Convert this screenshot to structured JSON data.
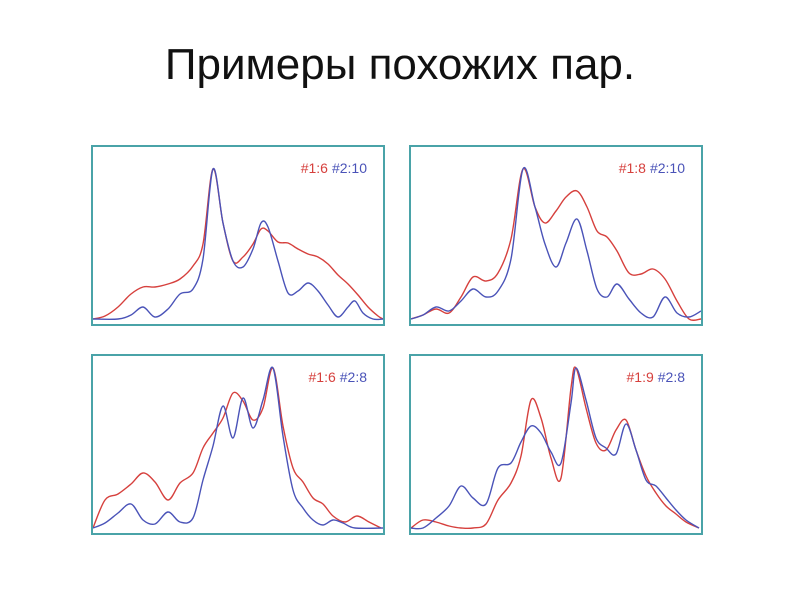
{
  "title": "Примеры похожих пар.",
  "colors": {
    "frame": "#4aa3a8",
    "red": "#d6403d",
    "blue": "#4a53b8"
  },
  "panels": [
    {
      "red_label": "#1:6",
      "blue_label": "#2:10",
      "red": [
        [
          0,
          0
        ],
        [
          12,
          3
        ],
        [
          25,
          12
        ],
        [
          38,
          25
        ],
        [
          50,
          32
        ],
        [
          62,
          32
        ],
        [
          75,
          35
        ],
        [
          87,
          40
        ],
        [
          100,
          53
        ],
        [
          110,
          75
        ],
        [
          120,
          150
        ],
        [
          130,
          96
        ],
        [
          140,
          58
        ],
        [
          150,
          62
        ],
        [
          160,
          75
        ],
        [
          168,
          90
        ],
        [
          175,
          88
        ],
        [
          185,
          77
        ],
        [
          195,
          76
        ],
        [
          205,
          70
        ],
        [
          215,
          65
        ],
        [
          225,
          62
        ],
        [
          235,
          55
        ],
        [
          245,
          44
        ],
        [
          255,
          35
        ],
        [
          265,
          24
        ],
        [
          275,
          12
        ],
        [
          285,
          3
        ],
        [
          290,
          0
        ]
      ],
      "blue": [
        [
          0,
          0
        ],
        [
          25,
          0
        ],
        [
          38,
          4
        ],
        [
          50,
          12
        ],
        [
          62,
          2
        ],
        [
          75,
          10
        ],
        [
          87,
          25
        ],
        [
          100,
          30
        ],
        [
          110,
          60
        ],
        [
          120,
          150
        ],
        [
          130,
          96
        ],
        [
          140,
          58
        ],
        [
          150,
          52
        ],
        [
          160,
          70
        ],
        [
          168,
          96
        ],
        [
          175,
          92
        ],
        [
          185,
          58
        ],
        [
          195,
          26
        ],
        [
          205,
          28
        ],
        [
          215,
          36
        ],
        [
          225,
          28
        ],
        [
          235,
          14
        ],
        [
          245,
          2
        ],
        [
          255,
          12
        ],
        [
          262,
          18
        ],
        [
          270,
          6
        ],
        [
          280,
          0
        ],
        [
          290,
          0
        ]
      ]
    },
    {
      "red_label": "#1:8",
      "blue_label": "#2:10",
      "red": [
        [
          0,
          0
        ],
        [
          12,
          4
        ],
        [
          25,
          10
        ],
        [
          38,
          6
        ],
        [
          50,
          22
        ],
        [
          62,
          42
        ],
        [
          75,
          38
        ],
        [
          87,
          46
        ],
        [
          100,
          80
        ],
        [
          112,
          150
        ],
        [
          124,
          112
        ],
        [
          134,
          96
        ],
        [
          145,
          108
        ],
        [
          155,
          122
        ],
        [
          166,
          128
        ],
        [
          176,
          112
        ],
        [
          186,
          88
        ],
        [
          196,
          82
        ],
        [
          206,
          68
        ],
        [
          218,
          46
        ],
        [
          230,
          45
        ],
        [
          242,
          50
        ],
        [
          254,
          40
        ],
        [
          266,
          18
        ],
        [
          278,
          0
        ],
        [
          290,
          0
        ]
      ],
      "blue": [
        [
          0,
          0
        ],
        [
          12,
          4
        ],
        [
          25,
          12
        ],
        [
          38,
          8
        ],
        [
          50,
          18
        ],
        [
          62,
          30
        ],
        [
          75,
          22
        ],
        [
          87,
          28
        ],
        [
          100,
          60
        ],
        [
          112,
          150
        ],
        [
          124,
          112
        ],
        [
          134,
          75
        ],
        [
          145,
          52
        ],
        [
          155,
          76
        ],
        [
          166,
          100
        ],
        [
          176,
          68
        ],
        [
          186,
          30
        ],
        [
          196,
          22
        ],
        [
          206,
          35
        ],
        [
          218,
          20
        ],
        [
          230,
          6
        ],
        [
          242,
          2
        ],
        [
          254,
          22
        ],
        [
          266,
          6
        ],
        [
          278,
          2
        ],
        [
          290,
          8
        ]
      ]
    },
    {
      "red_label": "#1:6",
      "blue_label": "#2:8",
      "red": [
        [
          0,
          0
        ],
        [
          12,
          28
        ],
        [
          25,
          34
        ],
        [
          38,
          44
        ],
        [
          50,
          55
        ],
        [
          62,
          46
        ],
        [
          75,
          28
        ],
        [
          87,
          45
        ],
        [
          100,
          55
        ],
        [
          110,
          80
        ],
        [
          120,
          95
        ],
        [
          130,
          110
        ],
        [
          140,
          135
        ],
        [
          150,
          127
        ],
        [
          160,
          108
        ],
        [
          170,
          120
        ],
        [
          180,
          160
        ],
        [
          190,
          102
        ],
        [
          200,
          60
        ],
        [
          210,
          46
        ],
        [
          220,
          30
        ],
        [
          230,
          24
        ],
        [
          240,
          12
        ],
        [
          252,
          6
        ],
        [
          264,
          12
        ],
        [
          276,
          6
        ],
        [
          288,
          0
        ]
      ],
      "blue": [
        [
          0,
          0
        ],
        [
          12,
          5
        ],
        [
          25,
          15
        ],
        [
          38,
          24
        ],
        [
          50,
          8
        ],
        [
          62,
          4
        ],
        [
          75,
          16
        ],
        [
          87,
          6
        ],
        [
          100,
          10
        ],
        [
          110,
          48
        ],
        [
          120,
          82
        ],
        [
          130,
          122
        ],
        [
          140,
          90
        ],
        [
          150,
          130
        ],
        [
          160,
          100
        ],
        [
          170,
          128
        ],
        [
          180,
          160
        ],
        [
          190,
          92
        ],
        [
          200,
          38
        ],
        [
          210,
          20
        ],
        [
          220,
          8
        ],
        [
          230,
          3
        ],
        [
          240,
          8
        ],
        [
          250,
          5
        ],
        [
          262,
          0
        ],
        [
          290,
          0
        ]
      ]
    },
    {
      "red_label": "#1:9",
      "blue_label": "#2:8",
      "red": [
        [
          0,
          0
        ],
        [
          12,
          8
        ],
        [
          25,
          6
        ],
        [
          38,
          2
        ],
        [
          50,
          0
        ],
        [
          62,
          0
        ],
        [
          75,
          4
        ],
        [
          87,
          28
        ],
        [
          100,
          45
        ],
        [
          110,
          72
        ],
        [
          120,
          128
        ],
        [
          130,
          110
        ],
        [
          140,
          70
        ],
        [
          150,
          50
        ],
        [
          160,
          140
        ],
        [
          165,
          160
        ],
        [
          175,
          120
        ],
        [
          185,
          85
        ],
        [
          195,
          78
        ],
        [
          205,
          98
        ],
        [
          215,
          108
        ],
        [
          225,
          78
        ],
        [
          235,
          52
        ],
        [
          245,
          35
        ],
        [
          255,
          22
        ],
        [
          265,
          14
        ],
        [
          275,
          6
        ],
        [
          288,
          0
        ]
      ],
      "blue": [
        [
          0,
          0
        ],
        [
          12,
          0
        ],
        [
          25,
          10
        ],
        [
          38,
          22
        ],
        [
          50,
          42
        ],
        [
          62,
          30
        ],
        [
          75,
          24
        ],
        [
          87,
          60
        ],
        [
          100,
          65
        ],
        [
          110,
          86
        ],
        [
          120,
          102
        ],
        [
          130,
          95
        ],
        [
          140,
          76
        ],
        [
          150,
          65
        ],
        [
          160,
          125
        ],
        [
          165,
          160
        ],
        [
          175,
          128
        ],
        [
          185,
          90
        ],
        [
          195,
          80
        ],
        [
          205,
          74
        ],
        [
          215,
          104
        ],
        [
          225,
          78
        ],
        [
          235,
          48
        ],
        [
          245,
          42
        ],
        [
          255,
          30
        ],
        [
          265,
          18
        ],
        [
          275,
          8
        ],
        [
          288,
          0
        ]
      ]
    }
  ]
}
